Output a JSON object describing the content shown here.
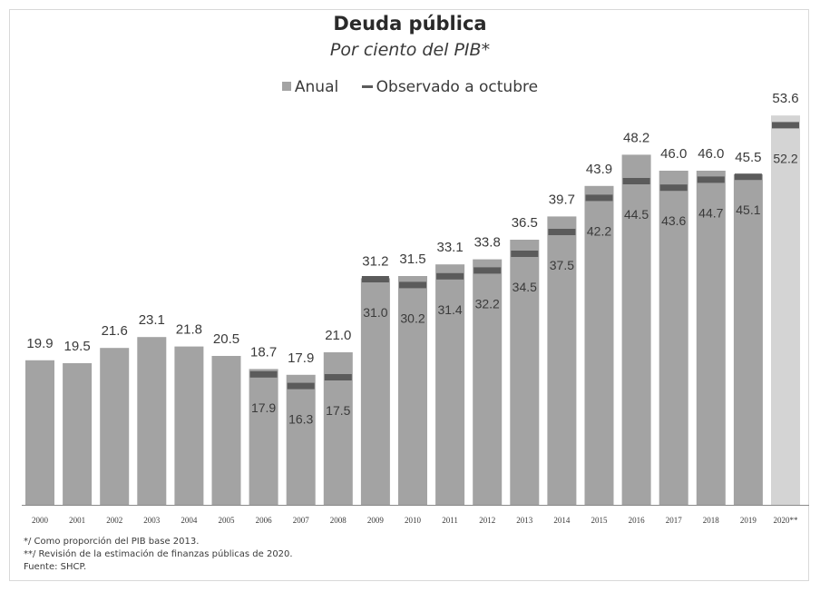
{
  "chart_data": {
    "type": "bar",
    "title": "Deuda pública",
    "subtitle": "Por ciento del PIB*",
    "legend": {
      "annual": "Anual",
      "october": "Observado a octubre",
      "placement": "top-center"
    },
    "categories": [
      "2000",
      "2001",
      "2002",
      "2003",
      "2004",
      "2005",
      "2006",
      "2007",
      "2008",
      "2009",
      "2010",
      "2011",
      "2012",
      "2013",
      "2014",
      "2015",
      "2016",
      "2017",
      "2018",
      "2019",
      "2020**"
    ],
    "series": [
      {
        "name": "Anual",
        "values": [
          19.9,
          19.5,
          21.6,
          23.1,
          21.8,
          20.5,
          18.7,
          17.9,
          21.0,
          31.2,
          31.5,
          33.1,
          33.8,
          36.5,
          39.7,
          43.9,
          48.2,
          46.0,
          46.0,
          45.5,
          53.6
        ],
        "labels": [
          "19.9",
          "19.5",
          "21.6",
          "23.1",
          "21.8",
          "20.5",
          "18.7",
          "17.9",
          "21.0",
          "31.2",
          "31.5",
          "33.1",
          "33.8",
          "36.5",
          "39.7",
          "43.9",
          "48.2",
          "46.0",
          "46.0",
          "45.5",
          "53.6"
        ]
      },
      {
        "name": "Observado a octubre",
        "values": [
          null,
          null,
          null,
          null,
          null,
          null,
          17.9,
          16.3,
          17.5,
          31.0,
          30.2,
          31.4,
          32.2,
          34.5,
          37.5,
          42.2,
          44.5,
          43.6,
          44.7,
          45.1,
          52.2
        ],
        "labels": [
          "",
          "",
          "",
          "",
          "",
          "",
          "17.9",
          "16.3",
          "17.5",
          "31.0",
          "30.2",
          "31.4",
          "32.2",
          "34.5",
          "37.5",
          "42.2",
          "44.5",
          "43.6",
          "44.7",
          "45.1",
          "52.2"
        ]
      }
    ],
    "ylim": [
      0,
      56
    ],
    "grid": false,
    "colors": {
      "bar": "#a3a3a3",
      "bar_highlight": "#d4d4d4",
      "marker": "#5b5b5b",
      "text": "#3a3a3a"
    }
  },
  "notes": [
    "*/ Como proporción del PIB base 2013.",
    "**/ Revisión de la estimación de finanzas públicas de 2020.",
    "Fuente: SHCP."
  ]
}
